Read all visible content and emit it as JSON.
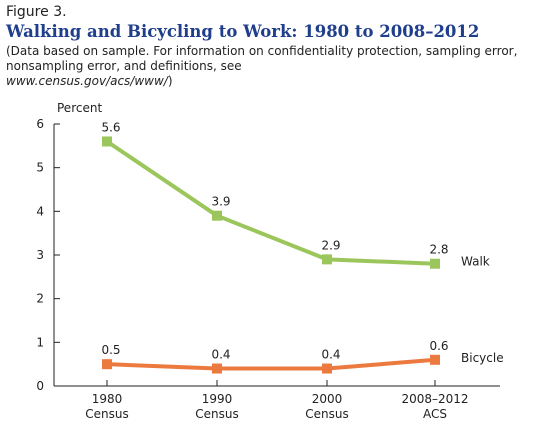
{
  "figure_label": "Figure 3.",
  "note": {
    "text": "(Data based on sample. For information on confidentiality protection, sampling error, nonsampling error, and definitions, see",
    "url": "www.census.gov/acs/www/",
    "close": ")"
  },
  "chart_data": {
    "type": "line",
    "title": "Walking and Bicycling to Work: 1980 to 2008–2012",
    "ylabel": "Percent",
    "xlabel": "",
    "ylim": [
      0,
      6
    ],
    "yticks": [
      "0",
      "1",
      "2",
      "3",
      "4",
      "5",
      "6"
    ],
    "grid": false,
    "categories": [
      [
        "1980",
        "Census"
      ],
      [
        "1990",
        "Census"
      ],
      [
        "2000",
        "Census"
      ],
      [
        "2008–2012",
        "ACS"
      ]
    ],
    "series": [
      {
        "name": "Walk",
        "values": [
          5.6,
          3.9,
          2.9,
          2.8
        ],
        "labels": [
          "5.6",
          "3.9",
          "2.9",
          "2.8"
        ],
        "color": "#9bc65c"
      },
      {
        "name": "Bicycle",
        "values": [
          0.5,
          0.4,
          0.4,
          0.6
        ],
        "labels": [
          "0.5",
          "0.4",
          "0.4",
          "0.6"
        ],
        "color": "#ec7a3f"
      }
    ],
    "legend": "right-of-lines"
  }
}
